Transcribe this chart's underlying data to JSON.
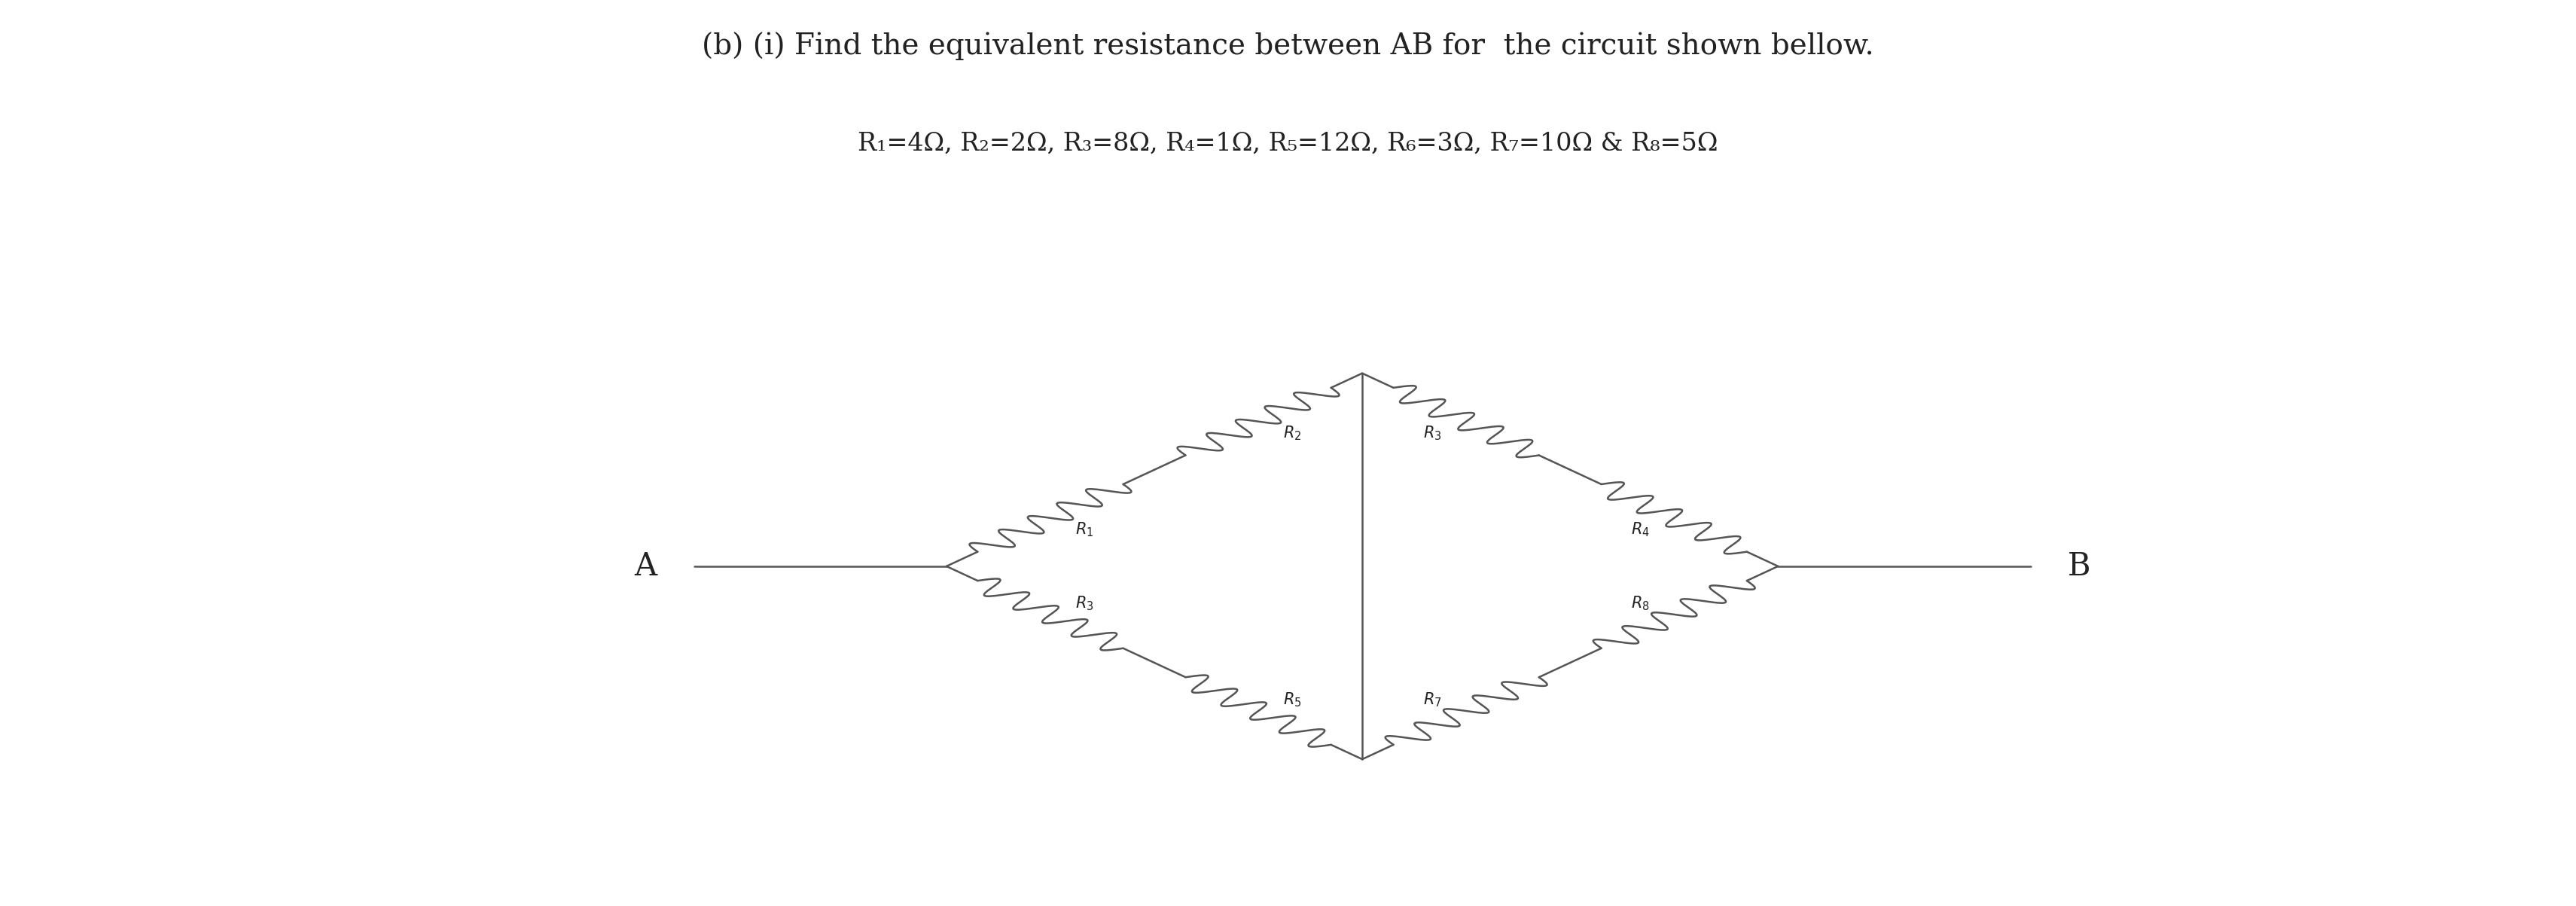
{
  "title": "(b) (i) Find the equivalent resistance between AB for  the circuit shown bellow.",
  "params": "R₁=4Ω, R₂=2Ω, R₃=8Ω, R₄=1Ω, R₅=12Ω, R₆=3Ω, R₇=10Ω & R₈=5Ω",
  "bg_color": "#ffffff",
  "line_color": "#555555",
  "text_color": "#222222",
  "lw": 1.8,
  "A": [
    4.5,
    5.5
  ],
  "Lj": [
    6.2,
    5.5
  ],
  "T": [
    9.0,
    8.8
  ],
  "Bo": [
    9.0,
    2.2
  ],
  "Rj": [
    11.8,
    5.5
  ],
  "B": [
    13.5,
    5.5
  ],
  "font_title": 28,
  "font_params": 24,
  "font_AB": 30,
  "font_R": 15,
  "xlim": [
    0,
    17
  ],
  "ylim": [
    0,
    11
  ],
  "n_coils": 5,
  "coil_amp": 0.13
}
